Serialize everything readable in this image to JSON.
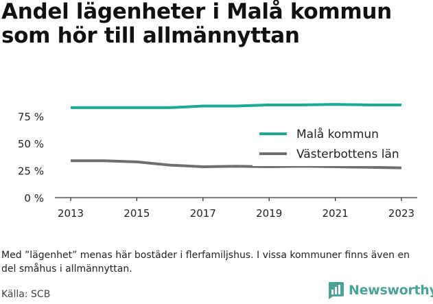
{
  "title": "Andel lägenheter i Malå kommun som hör till allmännyttan",
  "note": "Med ”lägenhet” menas här bostäder i flerfamiljshus. I vissa kommuner finns även en del småhus i allmännyttan.",
  "source": "Källa: SCB",
  "brand": {
    "name": "Newsworthy",
    "icon": "bar-chart-logo-icon"
  },
  "colors": {
    "series1": "#1ba895",
    "series2": "#6e6e73",
    "brand": "#4aa394"
  },
  "chart_data": {
    "type": "line",
    "x": [
      2013,
      2014,
      2015,
      2016,
      2017,
      2018,
      2019,
      2020,
      2021,
      2022,
      2023
    ],
    "x_ticks": [
      "2013",
      "2015",
      "2017",
      "2019",
      "2021",
      "2023"
    ],
    "y_ticks": [
      "0 %",
      "25 %",
      "50 %",
      "75 %"
    ],
    "ylim": [
      0,
      100
    ],
    "grid": false,
    "legend_position": "right",
    "series": [
      {
        "name": "Malå kommun",
        "color": "#1ba895",
        "values": [
          83,
          83,
          83,
          83,
          84.5,
          84.5,
          85.5,
          85.5,
          86,
          85.5,
          85.5
        ]
      },
      {
        "name": "Västerbottens län",
        "color": "#6e6e73",
        "values": [
          34,
          34,
          33,
          30,
          28.5,
          29,
          28.5,
          29,
          28.5,
          28,
          27.5
        ]
      }
    ]
  }
}
